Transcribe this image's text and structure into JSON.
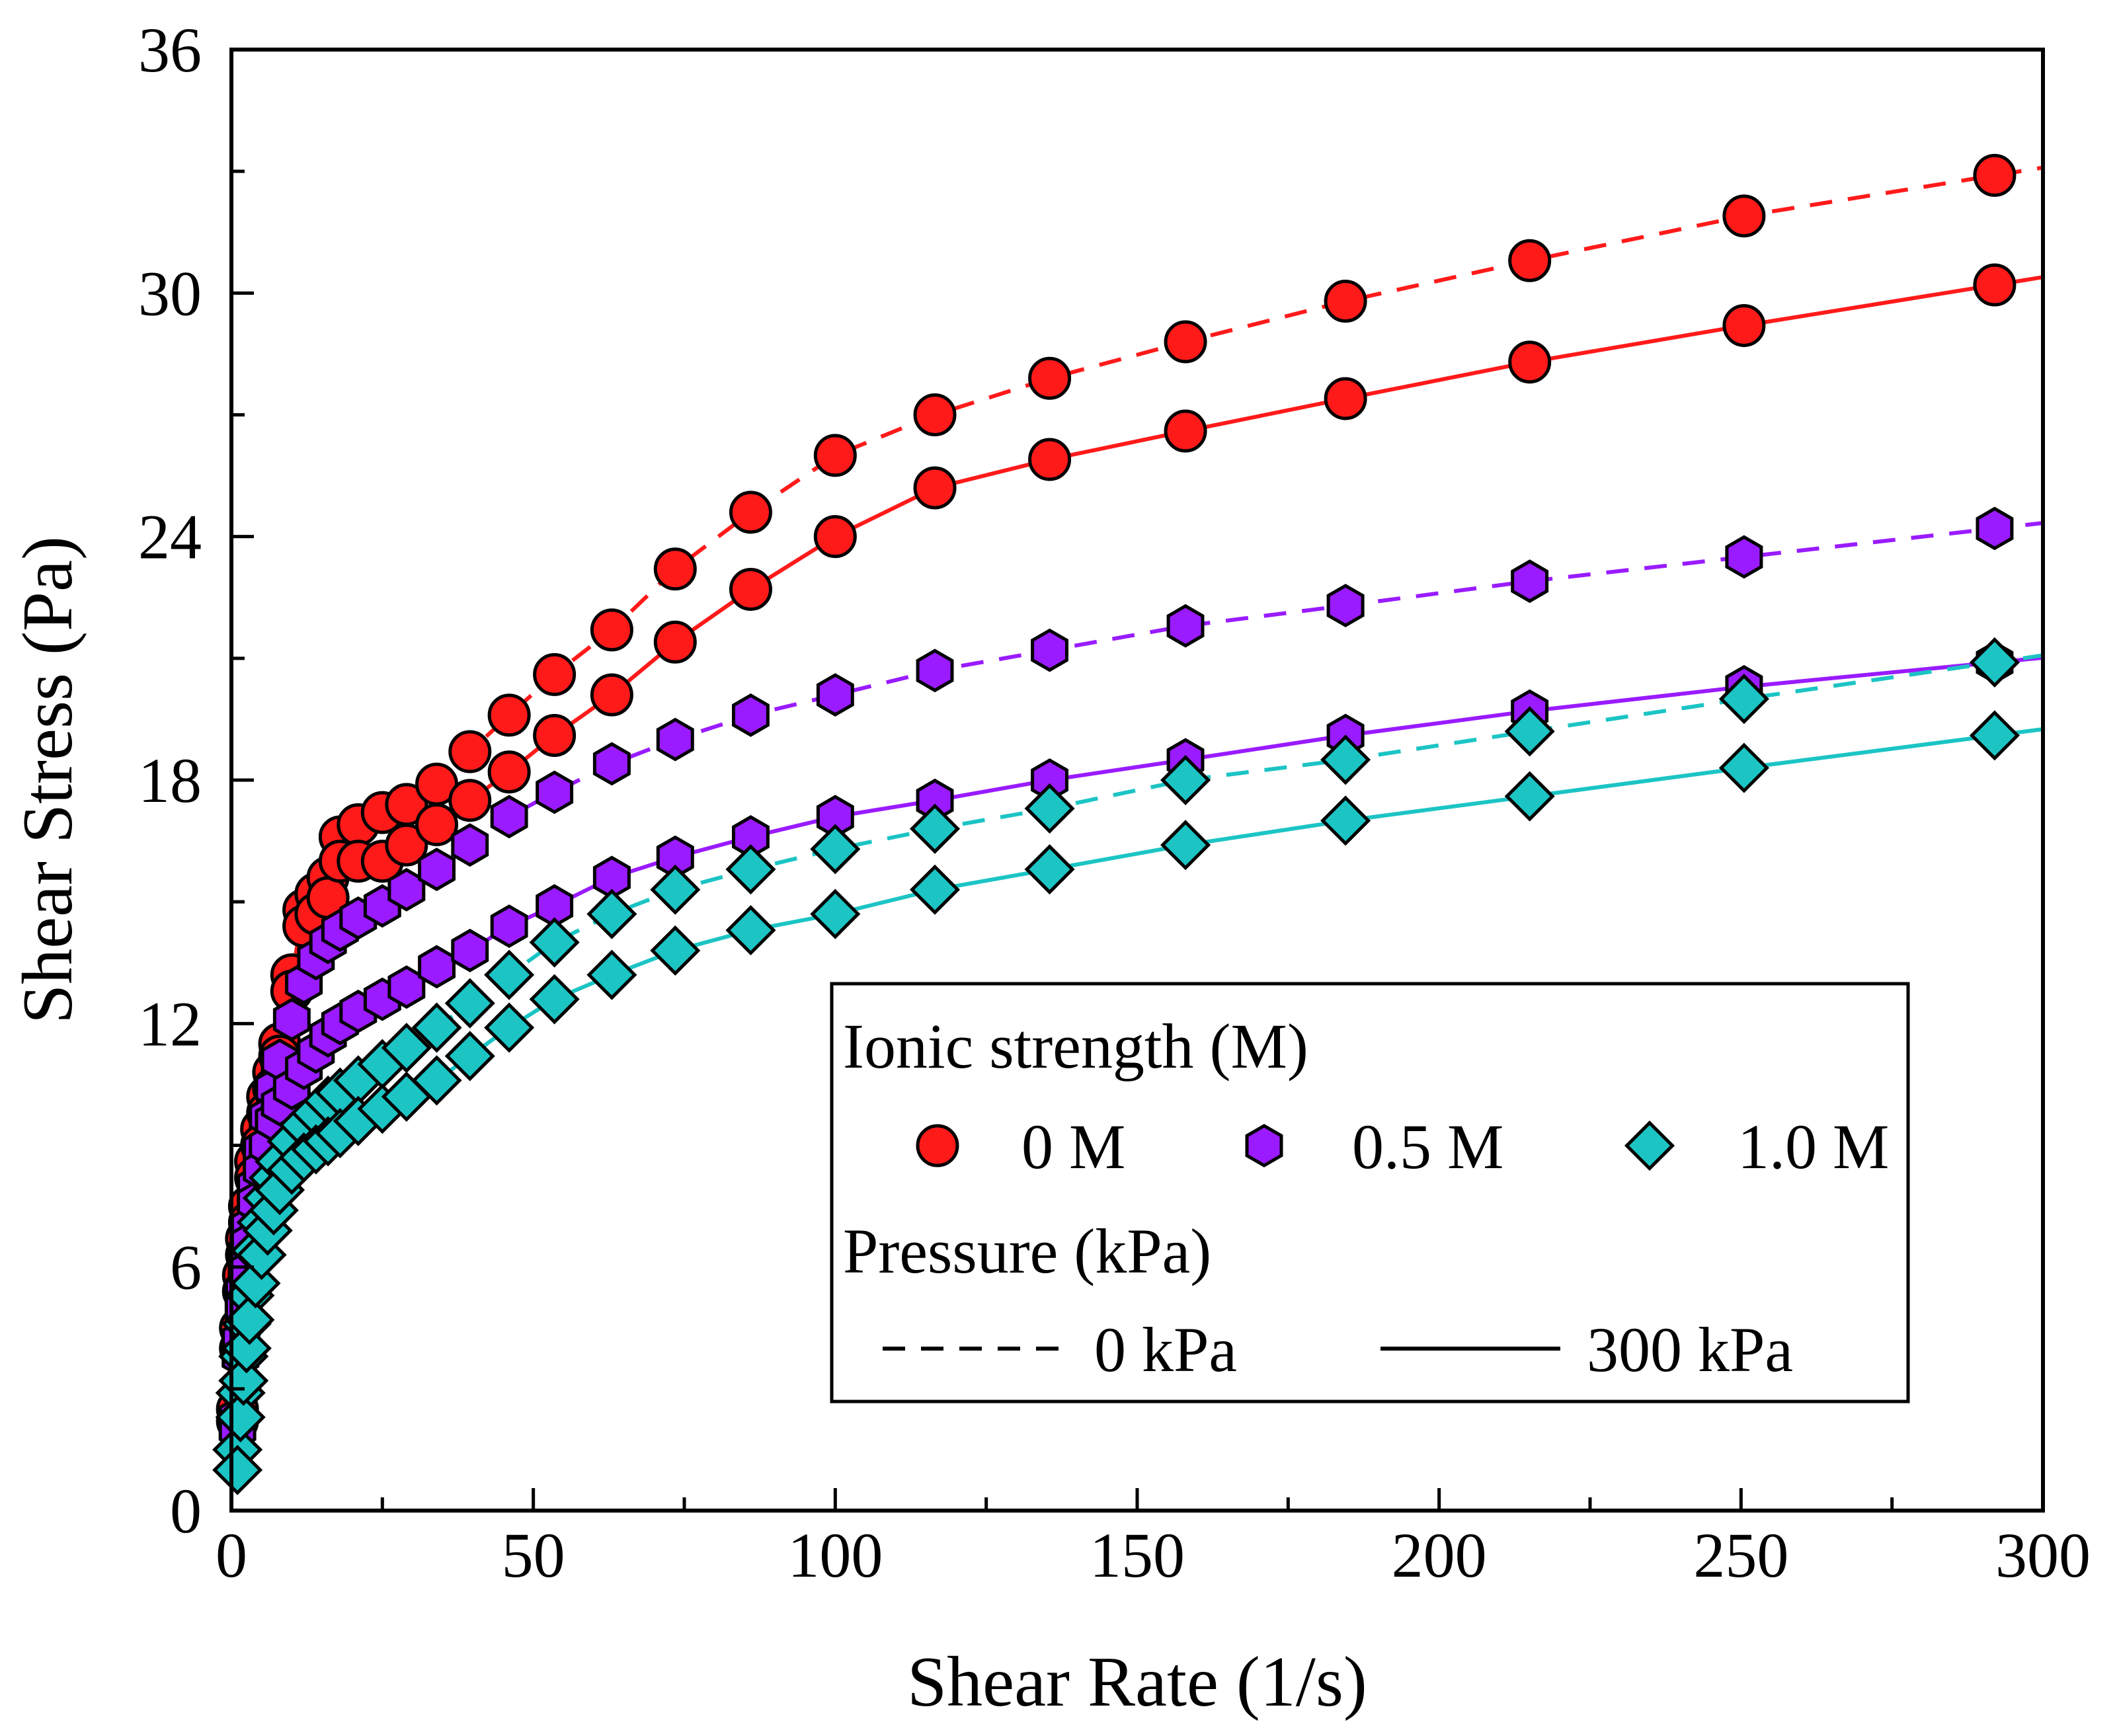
{
  "chart_data": {
    "type": "scatter",
    "xlabel": "Shear Rate (1/s)",
    "ylabel": "Shear Stress (Pa)",
    "xlim": [
      0,
      300
    ],
    "ylim": [
      0,
      36
    ],
    "xticks": [
      "0",
      "50",
      "100",
      "150",
      "200",
      "250",
      "300"
    ],
    "yticks": [
      "0",
      "6",
      "12",
      "18",
      "24",
      "30",
      "36"
    ],
    "grid": false,
    "legend": {
      "placement": "bottom-right",
      "group1_title": "Ionic strength (M)",
      "group2_title": "Pressure (kPa)",
      "ionic_entries": [
        "0 M",
        "0.5 M",
        "1.0 M"
      ],
      "pressure_entries": [
        "0 kPa",
        "300 kPa"
      ]
    },
    "series": [
      {
        "name": "0 M, 0 kPa",
        "ionic": "0 M",
        "pressure": "0 kPa",
        "color": "#ff1a1a",
        "marker": "circle",
        "line": "dashed",
        "x": [
          1,
          1.5,
          2,
          2.5,
          3,
          4,
          5,
          6,
          7,
          8,
          10,
          12,
          14,
          16,
          18,
          21,
          25,
          29,
          34,
          39.5,
          46,
          53.5,
          63,
          73.5,
          86,
          100,
          116.5,
          135.5,
          158,
          184.5,
          215,
          250.5,
          292
        ],
        "y": [
          2.5,
          4.5,
          5.8,
          6.7,
          7.5,
          8.6,
          9.4,
          10.2,
          10.8,
          11.5,
          13.2,
          14.8,
          15.2,
          15.6,
          16.6,
          16.9,
          17.2,
          17.4,
          17.9,
          18.7,
          19.6,
          20.6,
          21.7,
          23.2,
          24.6,
          26.0,
          27.0,
          27.9,
          28.8,
          29.8,
          30.8,
          31.9,
          32.9
        ]
      },
      {
        "name": "0 M, 300 kPa",
        "ionic": "0 M",
        "pressure": "300 kPa",
        "color": "#ff1a1a",
        "marker": "circle",
        "line": "solid",
        "x": [
          1,
          1.5,
          2,
          2.5,
          3,
          4,
          5,
          6,
          7,
          8,
          10,
          12,
          14,
          16,
          18,
          21,
          25,
          29,
          34,
          39.5,
          46,
          53.5,
          63,
          73.5,
          86,
          100,
          116.5,
          135.5,
          158,
          184.5,
          215,
          250.5,
          292
        ],
        "y": [
          2.2,
          4.0,
          5.4,
          6.3,
          7.1,
          8.2,
          9.0,
          9.8,
          10.4,
          11.2,
          12.8,
          14.4,
          14.7,
          15.1,
          16.0,
          16.0,
          16.0,
          16.4,
          16.9,
          17.5,
          18.2,
          19.1,
          20.1,
          21.4,
          22.7,
          24.0,
          25.2,
          25.9,
          26.6,
          27.4,
          28.3,
          29.2,
          30.2
        ]
      },
      {
        "name": "0.5 M, 0 kPa",
        "ionic": "0.5 M",
        "pressure": "0 kPa",
        "color": "#9a1bff",
        "marker": "hexagon",
        "line": "dashed",
        "x": [
          1,
          1.5,
          2,
          2.5,
          3,
          4,
          5,
          6,
          7,
          8,
          10,
          12,
          14,
          16,
          18,
          21,
          25,
          29,
          34,
          39.5,
          46,
          53.5,
          63,
          73.5,
          86,
          100,
          116.5,
          135.5,
          158,
          184.5,
          215,
          250.5,
          292
        ],
        "y": [
          2.3,
          4.2,
          5.4,
          6.3,
          7.0,
          8.0,
          8.9,
          9.7,
          10.4,
          11.1,
          12.1,
          13.0,
          13.6,
          14.0,
          14.3,
          14.6,
          14.9,
          15.3,
          15.8,
          16.4,
          17.1,
          17.7,
          18.4,
          19.0,
          19.6,
          20.1,
          20.7,
          21.2,
          21.8,
          22.3,
          22.9,
          23.5,
          24.2
        ]
      },
      {
        "name": "0.5 M, 300 kPa",
        "ionic": "0.5 M",
        "pressure": "300 kPa",
        "color": "#9a1bff",
        "marker": "hexagon",
        "line": "solid",
        "x": [
          1,
          1.5,
          2,
          2.5,
          3,
          4,
          5,
          6,
          7,
          8,
          10,
          12,
          14,
          16,
          18,
          21,
          25,
          29,
          34,
          39.5,
          46,
          53.5,
          63,
          73.5,
          86,
          100,
          116.5,
          135.5,
          158,
          184.5,
          215,
          250.5,
          292
        ],
        "y": [
          2.0,
          3.8,
          5.0,
          5.9,
          6.6,
          7.6,
          8.4,
          9.0,
          9.6,
          10.0,
          10.4,
          10.9,
          11.3,
          11.7,
          12.0,
          12.3,
          12.6,
          12.9,
          13.4,
          13.8,
          14.4,
          14.9,
          15.6,
          16.1,
          16.6,
          17.1,
          17.5,
          18.0,
          18.5,
          19.1,
          19.7,
          20.3,
          20.9
        ]
      },
      {
        "name": "1.0 M, 0 kPa",
        "ionic": "1.0 M",
        "pressure": "0 kPa",
        "color": "#1cc4c4",
        "marker": "diamond",
        "line": "dashed",
        "x": [
          1,
          1.5,
          2,
          2.5,
          3,
          4,
          5,
          6,
          7,
          8,
          10,
          12,
          14,
          16,
          18,
          21,
          25,
          29,
          34,
          39.5,
          46,
          53.5,
          63,
          73.5,
          86,
          100,
          116.5,
          135.5,
          158,
          184.5,
          215,
          250.5,
          292
        ],
        "y": [
          1.5,
          2.9,
          3.8,
          4.6,
          5.3,
          6.4,
          7.1,
          7.7,
          8.2,
          8.6,
          9.1,
          9.5,
          9.8,
          10.1,
          10.3,
          10.6,
          11.0,
          11.4,
          11.9,
          12.5,
          13.2,
          14.0,
          14.7,
          15.3,
          15.8,
          16.3,
          16.8,
          17.3,
          18.0,
          18.5,
          19.2,
          20.0,
          20.9
        ]
      },
      {
        "name": "1.0 M, 300 kPa",
        "ionic": "1.0 M",
        "pressure": "300 kPa",
        "color": "#1cc4c4",
        "marker": "diamond",
        "line": "solid",
        "x": [
          1,
          1.5,
          2,
          2.5,
          3,
          4,
          5,
          6,
          7,
          8,
          10,
          12,
          14,
          16,
          18,
          21,
          25,
          29,
          34,
          39.5,
          46,
          53.5,
          63,
          73.5,
          86,
          100,
          116.5,
          135.5,
          158,
          184.5,
          215,
          250.5,
          292
        ],
        "y": [
          1.0,
          2.3,
          3.2,
          4.0,
          4.7,
          5.6,
          6.3,
          6.9,
          7.4,
          7.9,
          8.4,
          8.7,
          8.9,
          9.1,
          9.3,
          9.6,
          9.9,
          10.2,
          10.6,
          11.2,
          11.9,
          12.6,
          13.2,
          13.8,
          14.3,
          14.7,
          15.3,
          15.8,
          16.4,
          17.0,
          17.6,
          18.3,
          19.1
        ]
      }
    ]
  }
}
